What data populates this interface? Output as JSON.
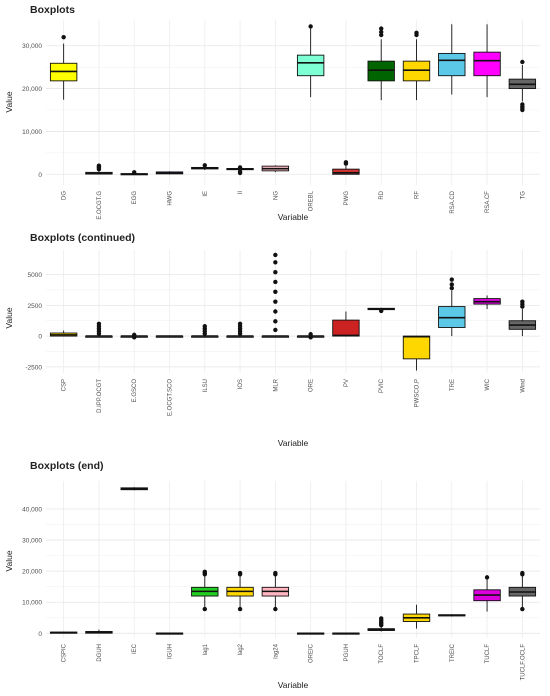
{
  "chart_data": [
    {
      "type": "boxplot",
      "title": "Boxplots",
      "xlabel": "Variable",
      "ylabel": "Value",
      "ylim": [
        -2500,
        36000
      ],
      "yticks": [
        0,
        10000,
        20000,
        30000
      ],
      "ytick_labels": [
        "0",
        "10,000",
        "20,000",
        "30,000"
      ],
      "grid": true,
      "categories": [
        "DG",
        "E.OCGT.G",
        "EGG",
        "HWG",
        "IE",
        "II",
        "NG",
        "OREBL",
        "PWG",
        "RD",
        "RF",
        "RSA.CD",
        "RSA.CF",
        "TG"
      ],
      "boxes": [
        {
          "q1": 21800,
          "median": 24000,
          "q3": 25900,
          "whislo": 17400,
          "whishi": 30500,
          "outliers": [
            32000
          ],
          "color": "#ffff00"
        },
        {
          "q1": 50,
          "median": 200,
          "q3": 450,
          "whislo": 0,
          "whishi": 900,
          "outliers": [
            1200,
            1500,
            1800,
            2000
          ],
          "color": "#ffffff"
        },
        {
          "q1": 0,
          "median": 50,
          "q3": 150,
          "whislo": 0,
          "whishi": 300,
          "outliers": [
            450
          ],
          "color": "#ffffff"
        },
        {
          "q1": 100,
          "median": 300,
          "q3": 550,
          "whislo": 0,
          "whishi": 700,
          "outliers": [],
          "color": "#3333cc"
        },
        {
          "q1": 1250,
          "median": 1450,
          "q3": 1600,
          "whislo": 1000,
          "whishi": 1900,
          "outliers": [
            2100
          ],
          "color": "#ffffff"
        },
        {
          "q1": 1100,
          "median": 1250,
          "q3": 1350,
          "whislo": 800,
          "whishi": 1500,
          "outliers": [
            300,
            600,
            1600
          ],
          "color": "#ffffff"
        },
        {
          "q1": 800,
          "median": 1300,
          "q3": 1900,
          "whislo": 500,
          "whishi": 2100,
          "outliers": [],
          "color": "#ffc0cb"
        },
        {
          "q1": 23000,
          "median": 26000,
          "q3": 27800,
          "whislo": 18000,
          "whishi": 34000,
          "outliers": [
            34500
          ],
          "color": "#7fffd4"
        },
        {
          "q1": 0,
          "median": 350,
          "q3": 1200,
          "whislo": 0,
          "whishi": 2000,
          "outliers": [
            2500,
            2800
          ],
          "color": "#cc3333"
        },
        {
          "q1": 21800,
          "median": 24300,
          "q3": 26400,
          "whislo": 17300,
          "whishi": 31500,
          "outliers": [
            32500,
            33200,
            34000
          ],
          "color": "#006400"
        },
        {
          "q1": 21800,
          "median": 24300,
          "q3": 26400,
          "whislo": 17300,
          "whishi": 31500,
          "outliers": [
            32500,
            33000
          ],
          "color": "#ffd700"
        },
        {
          "q1": 23000,
          "median": 26600,
          "q3": 28200,
          "whislo": 18600,
          "whishi": 35000,
          "outliers": [],
          "color": "#5bc8e8"
        },
        {
          "q1": 23000,
          "median": 26500,
          "q3": 28500,
          "whislo": 18000,
          "whishi": 35000,
          "outliers": [],
          "color": "#ff00ff"
        },
        {
          "q1": 20000,
          "median": 21000,
          "q3": 22200,
          "whislo": 17000,
          "whishi": 25500,
          "outliers": [
            15000,
            15400,
            15800,
            16300,
            26200
          ],
          "color": "#666666"
        }
      ]
    },
    {
      "type": "boxplot",
      "title": "Boxplots (continued)",
      "xlabel": "Variable",
      "ylabel": "Value",
      "ylim": [
        -3000,
        7000
      ],
      "yticks": [
        -2500,
        0,
        2500,
        5000
      ],
      "ytick_labels": [
        "-2500",
        "0",
        "2500",
        "5000"
      ],
      "grid": true,
      "categories": [
        "CSP",
        "D.IPP.OCGT",
        "E.GSCO",
        "E.OCGT.SCO",
        "ILSU",
        "IOS",
        "MLR",
        "ORE",
        "PV",
        "PVIC",
        "PWSCO.P",
        "TRE",
        "WIC",
        "Wind"
      ],
      "boxes": [
        {
          "q1": 0,
          "median": 100,
          "q3": 250,
          "whislo": 0,
          "whishi": 450,
          "outliers": [],
          "color": "#ffd700"
        },
        {
          "q1": 0,
          "median": 0,
          "q3": 0,
          "whislo": 0,
          "whishi": 0,
          "outliers": [
            200,
            400,
            600,
            800,
            1000
          ],
          "color": "#ffffff"
        },
        {
          "q1": 0,
          "median": 0,
          "q3": 0,
          "whislo": 0,
          "whishi": 0,
          "outliers": [
            -100,
            100
          ],
          "color": "#ffffff"
        },
        {
          "q1": 0,
          "median": 0,
          "q3": 0,
          "whislo": 0,
          "whishi": 0,
          "outliers": [],
          "color": "#ffffff"
        },
        {
          "q1": 0,
          "median": 0,
          "q3": 0,
          "whislo": 0,
          "whishi": 0,
          "outliers": [
            200,
            400,
            600,
            800
          ],
          "color": "#ffffff"
        },
        {
          "q1": 0,
          "median": 0,
          "q3": 0,
          "whislo": 0,
          "whishi": 0,
          "outliers": [
            200,
            400,
            600,
            800,
            1000
          ],
          "color": "#ffffff"
        },
        {
          "q1": 0,
          "median": 0,
          "q3": 0,
          "whislo": 0,
          "whishi": 0,
          "outliers": [
            500,
            1200,
            2000,
            2800,
            3600,
            4400,
            5200,
            6000,
            6600
          ],
          "color": "#ffffff"
        },
        {
          "q1": 0,
          "median": 0,
          "q3": 0,
          "whislo": 0,
          "whishi": 0,
          "outliers": [
            -100,
            150
          ],
          "color": "#ffffff"
        },
        {
          "q1": 0,
          "median": 50,
          "q3": 1300,
          "whislo": 0,
          "whishi": 2000,
          "outliers": [],
          "color": "#cc2222"
        },
        {
          "q1": 2150,
          "median": 2200,
          "q3": 2260,
          "whislo": 2100,
          "whishi": 2300,
          "outliers": [
            2050
          ],
          "color": "#ffffff"
        },
        {
          "q1": -1850,
          "median": -50,
          "q3": 0,
          "whislo": -2800,
          "whishi": 0,
          "outliers": [],
          "color": "#ffd700"
        },
        {
          "q1": 700,
          "median": 1500,
          "q3": 2400,
          "whislo": 0,
          "whishi": 3700,
          "outliers": [
            3900,
            4200,
            4600
          ],
          "color": "#5bc8e8"
        },
        {
          "q1": 2600,
          "median": 2800,
          "q3": 3050,
          "whislo": 2200,
          "whishi": 3300,
          "outliers": [],
          "color": "#dd00dd"
        },
        {
          "q1": 550,
          "median": 900,
          "q3": 1250,
          "whislo": 0,
          "whishi": 2200,
          "outliers": [
            2400,
            2600,
            2800
          ],
          "color": "#666666"
        }
      ]
    },
    {
      "type": "boxplot",
      "title": "Boxplots (end)",
      "xlabel": "Variable",
      "ylabel": "Value",
      "ylim": [
        -1500,
        49000
      ],
      "yticks": [
        0,
        10000,
        20000,
        30000,
        40000
      ],
      "ytick_labels": [
        "0",
        "10,000",
        "20,000",
        "30,000",
        "40,000"
      ],
      "grid": true,
      "categories": [
        "CSPIC",
        "DGUH",
        "IEC",
        "IGUH",
        "lag1",
        "lag2",
        "lag24",
        "OREIC",
        "PGUH",
        "TOCLF",
        "TPCLF",
        "TREIC",
        "TUCLF",
        "TUCLF.OCLF"
      ],
      "boxes": [
        {
          "q1": 100,
          "median": 250,
          "q3": 400,
          "whislo": 0,
          "whishi": 550,
          "outliers": [],
          "color": "#ffffff"
        },
        {
          "q1": 50,
          "median": 300,
          "q3": 600,
          "whislo": 0,
          "whishi": 1200,
          "outliers": [],
          "color": "#cc3333"
        },
        {
          "q1": 46200,
          "median": 46500,
          "q3": 46800,
          "whislo": 46000,
          "whishi": 47000,
          "outliers": [],
          "color": "#6a0dad"
        },
        {
          "q1": -50,
          "median": 0,
          "q3": 100,
          "whislo": -150,
          "whishi": 200,
          "outliers": [],
          "color": "#ffffff"
        },
        {
          "q1": 12000,
          "median": 13500,
          "q3": 14800,
          "whislo": 8200,
          "whishi": 18700,
          "outliers": [
            7800,
            19000,
            19400,
            19800
          ],
          "color": "#22cc22"
        },
        {
          "q1": 12000,
          "median": 13500,
          "q3": 14800,
          "whislo": 8200,
          "whishi": 18700,
          "outliers": [
            7800,
            19000,
            19400
          ],
          "color": "#ffd700"
        },
        {
          "q1": 12000,
          "median": 13500,
          "q3": 14800,
          "whislo": 8200,
          "whishi": 18700,
          "outliers": [
            7800,
            19000,
            19400
          ],
          "color": "#ffb6c1"
        },
        {
          "q1": -50,
          "median": 0,
          "q3": 100,
          "whislo": -150,
          "whishi": 200,
          "outliers": [],
          "color": "#ffffff"
        },
        {
          "q1": -50,
          "median": 0,
          "q3": 100,
          "whislo": -150,
          "whishi": 200,
          "outliers": [],
          "color": "#ffffff"
        },
        {
          "q1": 900,
          "median": 1200,
          "q3": 1500,
          "whislo": 600,
          "whishi": 2200,
          "outliers": [
            2600,
            3100,
            3600,
            4200,
            4800
          ],
          "color": "#ffffff"
        },
        {
          "q1": 3800,
          "median": 5000,
          "q3": 6200,
          "whislo": 1500,
          "whishi": 9200,
          "outliers": [],
          "color": "#ffd700"
        },
        {
          "q1": 5600,
          "median": 5800,
          "q3": 6000,
          "whislo": 5400,
          "whishi": 6200,
          "outliers": [],
          "color": "#5bc8e8"
        },
        {
          "q1": 10500,
          "median": 12300,
          "q3": 14000,
          "whislo": 7000,
          "whishi": 17500,
          "outliers": [
            18000
          ],
          "color": "#dd00dd"
        },
        {
          "q1": 12000,
          "median": 13300,
          "q3": 14800,
          "whislo": 8200,
          "whishi": 18700,
          "outliers": [
            7800,
            19000,
            19400
          ],
          "color": "#666666"
        }
      ]
    }
  ]
}
